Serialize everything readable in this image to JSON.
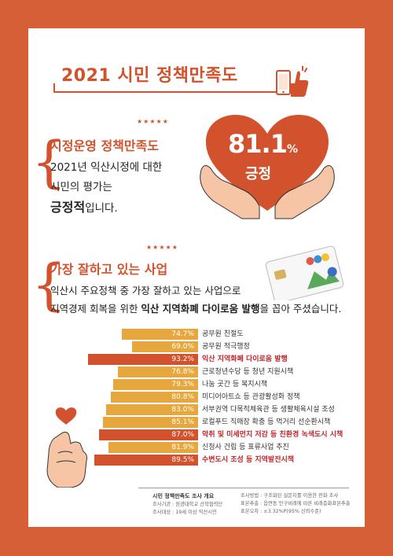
{
  "title": "2021 시민 정책만족도",
  "stars": "★★★★★",
  "section1": {
    "heading": "시정운영 정책만족도",
    "line1": "2021년 익산시정에 대한",
    "line2": "시민의 평가는",
    "line3_strong": "긍정적",
    "line3_rest": "입니다.",
    "percent": "81.1",
    "percent_sign": "%",
    "positive_label": "긍정"
  },
  "section2": {
    "heading": "가장 잘하고 있는 사업",
    "line1": "익산시 주요정책 중 가장 잘하고 있는 사업으로",
    "line2_pre": "지역경제 회복을 위한 ",
    "line2_strong": "익산 지역화폐 다이로움 발행",
    "line2_post": "을 꼽아 주셨습니다."
  },
  "chart_data": {
    "type": "bar",
    "orientation": "horizontal",
    "unit": "%",
    "items": [
      {
        "label": "공무원 친절도",
        "value": 74.7,
        "display": "74.7%",
        "highlight": false
      },
      {
        "label": "공무원 적극행정",
        "value": 69.0,
        "display": "69.0%",
        "highlight": false
      },
      {
        "label": "익산 지역화폐 다이로움 발행",
        "value": 93.2,
        "display": "93.2%",
        "highlight": true
      },
      {
        "label": "근로청년수당 등 청년 지원시책",
        "value": 76.8,
        "display": "76.8%",
        "highlight": false
      },
      {
        "label": "나눔 곳간 등 복지시책",
        "value": 79.3,
        "display": "79.3%",
        "highlight": false
      },
      {
        "label": "미디어아트쇼 등 관광활성화 정책",
        "value": 80.8,
        "display": "80.8%",
        "highlight": false
      },
      {
        "label": "서부권역 다목적체육관 등 생활체육시설 조성",
        "value": 83.0,
        "display": "83.0%",
        "highlight": false
      },
      {
        "label": "로컬푸드 직매장 확충 등 먹거리 선순환시책",
        "value": 85.1,
        "display": "85.1%",
        "highlight": false
      },
      {
        "label": "악취 및 미세먼지 저감 등 친환경 녹색도시 시책",
        "value": 87.0,
        "display": "87.0%",
        "highlight": true
      },
      {
        "label": "신청사 건립 등 표류사업 추진",
        "value": 81.9,
        "display": "81.9%",
        "highlight": false
      },
      {
        "label": "수변도시 조성 등 지역발전시책",
        "value": 89.5,
        "display": "89.5%",
        "highlight": true
      }
    ],
    "colors": {
      "normal": "#e6a83e",
      "highlight": "#d1522c",
      "highlight_text": "#c0262b"
    }
  },
  "footer": {
    "title": "시민 정책만족도 조사 개요",
    "left": [
      "조사기관 : 원광대학교 산학협력단",
      "조사대상 : 19세 이상 익산시민"
    ],
    "right": [
      "조사방법 : 구조화된 설문지를 이용한 전화 조사",
      "표본추출 : 읍면동 인구비례에 따른 비례층화표본추출",
      "표본오차 : ±3.32%P(95% 신뢰수준)"
    ]
  },
  "colors": {
    "background": "#d65f36",
    "accent": "#d1522c",
    "card": "#ffffff"
  }
}
